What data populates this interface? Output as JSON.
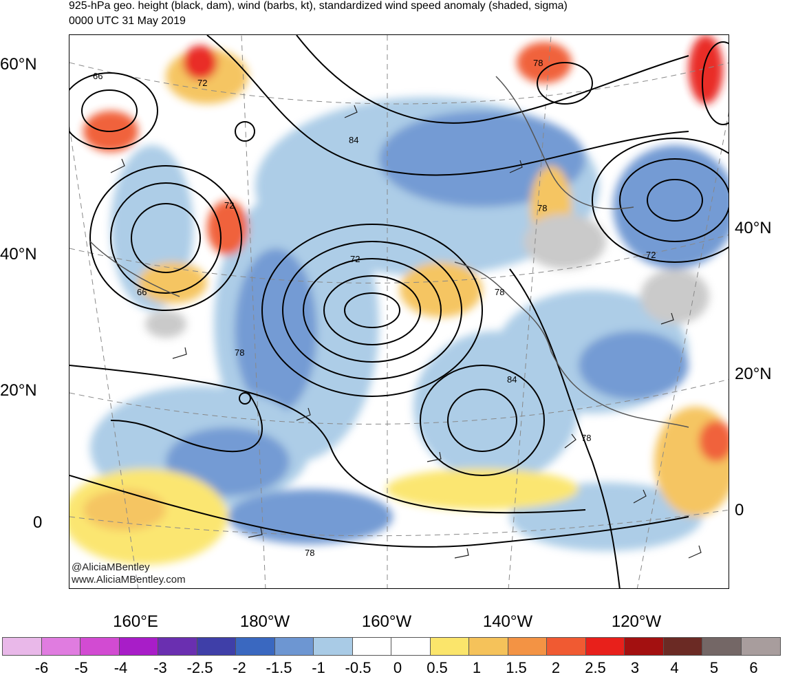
{
  "title": {
    "line1": "925-hPa geo. height (black, dam), wind (barbs, kt), standardized wind speed anomaly (shaded, sigma)",
    "line2": "0000 UTC 31 May 2019"
  },
  "axes": {
    "left_lat_labels": [
      "60°N",
      "40°N",
      "20°N",
      "0"
    ],
    "right_lat_labels": [
      "40°N",
      "20°N",
      "0"
    ],
    "lon_labels": [
      "160°E",
      "180°W",
      "160°W",
      "140°W",
      "120°W"
    ]
  },
  "credits": {
    "handle": "@AliciaMBentley",
    "website": "www.AliciaMBentley.com"
  },
  "contour_labels": [
    "66",
    "72",
    "84",
    "72",
    "66",
    "78",
    "72",
    "78",
    "84",
    "78",
    "78",
    "78",
    "72",
    "78"
  ],
  "colorbar": {
    "colors": [
      "#e9b8e9",
      "#e07ce0",
      "#d24bd2",
      "#a81dc8",
      "#6a2fb0",
      "#3f3fa8",
      "#3a68c0",
      "#6d96d2",
      "#a9cbe6",
      "#ffffff",
      "#ffffff",
      "#fbe56b",
      "#f5c25a",
      "#f39344",
      "#f05a32",
      "#e8201b",
      "#a31010",
      "#6b2a24",
      "#746766",
      "#a89d9d"
    ],
    "ticks": [
      "-6",
      "-5",
      "-4",
      "-3",
      "-2.5",
      "-2",
      "-1.5",
      "-1",
      "-0.5",
      "0",
      "0.5",
      "1",
      "1.5",
      "2",
      "2.5",
      "3",
      "4",
      "5",
      "6"
    ]
  }
}
